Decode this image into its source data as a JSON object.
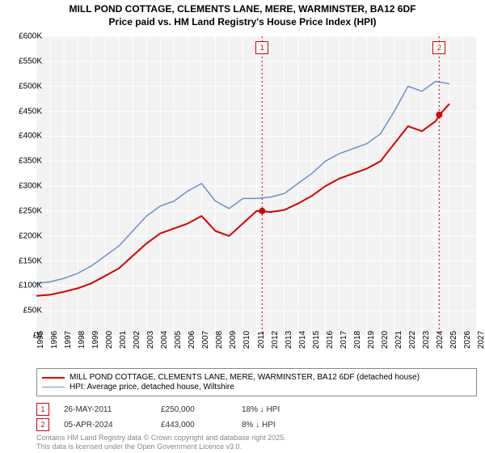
{
  "title_line1": "MILL POND COTTAGE, CLEMENTS LANE, MERE, WARMINSTER, BA12 6DF",
  "title_line2": "Price paid vs. HM Land Registry's House Price Index (HPI)",
  "chart": {
    "type": "line",
    "background_color": "#f2f2f2",
    "grid_color": "#ffffff",
    "grid_width": 1,
    "y": {
      "min": 0,
      "max": 600000,
      "tick_step": 50000,
      "tick_labels": [
        "£0",
        "£50K",
        "£100K",
        "£150K",
        "£200K",
        "£250K",
        "£300K",
        "£350K",
        "£400K",
        "£450K",
        "£500K",
        "£550K",
        "£600K"
      ],
      "label_fontsize": 10
    },
    "x": {
      "min": 1995,
      "max": 2027,
      "tick_step": 1,
      "tick_labels": [
        "1995",
        "1996",
        "1997",
        "1998",
        "1999",
        "2000",
        "2001",
        "2002",
        "2003",
        "2004",
        "2005",
        "2006",
        "2007",
        "2008",
        "2009",
        "2010",
        "2011",
        "2012",
        "2013",
        "2014",
        "2015",
        "2016",
        "2017",
        "2018",
        "2019",
        "2020",
        "2021",
        "2022",
        "2023",
        "2024",
        "2025",
        "2026",
        "2027"
      ],
      "label_fontsize": 10
    },
    "series": [
      {
        "name": "property",
        "label": "MILL POND COTTAGE, CLEMENTS LANE, MERE, WARMINSTER, BA12 6DF (detached house)",
        "color": "#d40000",
        "line_width": 2,
        "x": [
          1995,
          1996,
          1997,
          1998,
          1999,
          2000,
          2001,
          2002,
          2003,
          2004,
          2005,
          2006,
          2007,
          2008,
          2009,
          2010,
          2011,
          2012,
          2013,
          2014,
          2015,
          2016,
          2017,
          2018,
          2019,
          2020,
          2021,
          2022,
          2023,
          2024,
          2024.3,
          2025
        ],
        "y": [
          80000,
          82000,
          88000,
          95000,
          105000,
          120000,
          135000,
          160000,
          185000,
          205000,
          215000,
          225000,
          240000,
          210000,
          200000,
          225000,
          250000,
          248000,
          252000,
          265000,
          280000,
          300000,
          315000,
          325000,
          335000,
          350000,
          385000,
          420000,
          410000,
          430000,
          443000,
          465000
        ]
      },
      {
        "name": "hpi",
        "label": "HPI: Average price, detached house, Wiltshire",
        "color": "#6b8fc9",
        "line_width": 1.5,
        "x": [
          1995,
          1996,
          1997,
          1998,
          1999,
          2000,
          2001,
          2002,
          2003,
          2004,
          2005,
          2006,
          2007,
          2008,
          2009,
          2010,
          2011,
          2012,
          2013,
          2014,
          2015,
          2016,
          2017,
          2018,
          2019,
          2020,
          2021,
          2022,
          2023,
          2024,
          2025
        ],
        "y": [
          105000,
          108000,
          115000,
          125000,
          140000,
          160000,
          180000,
          210000,
          240000,
          260000,
          270000,
          290000,
          305000,
          270000,
          255000,
          275000,
          275000,
          278000,
          285000,
          305000,
          325000,
          350000,
          365000,
          375000,
          385000,
          405000,
          450000,
          500000,
          490000,
          510000,
          505000
        ]
      }
    ],
    "markers": [
      {
        "id": "1",
        "series": "property",
        "x": 2011.4,
        "y": 250000,
        "badge_color": "#d40000",
        "date": "26-MAY-2011",
        "price": "£250,000",
        "vs_hpi": "18% ↓ HPI"
      },
      {
        "id": "2",
        "series": "property",
        "x": 2024.26,
        "y": 443000,
        "badge_color": "#d40000",
        "date": "05-APR-2024",
        "price": "£443,000",
        "vs_hpi": "8% ↓ HPI"
      }
    ]
  },
  "legend": {
    "items": [
      {
        "color": "#d40000",
        "width": 2,
        "label_path": "chart.series.0.label"
      },
      {
        "color": "#6b8fc9",
        "width": 2,
        "label_path": "chart.series.1.label"
      }
    ]
  },
  "footer_line1": "Contains HM Land Registry data © Crown copyright and database right 2025.",
  "footer_line2": "This data is licensed under the Open Government Licence v3.0."
}
